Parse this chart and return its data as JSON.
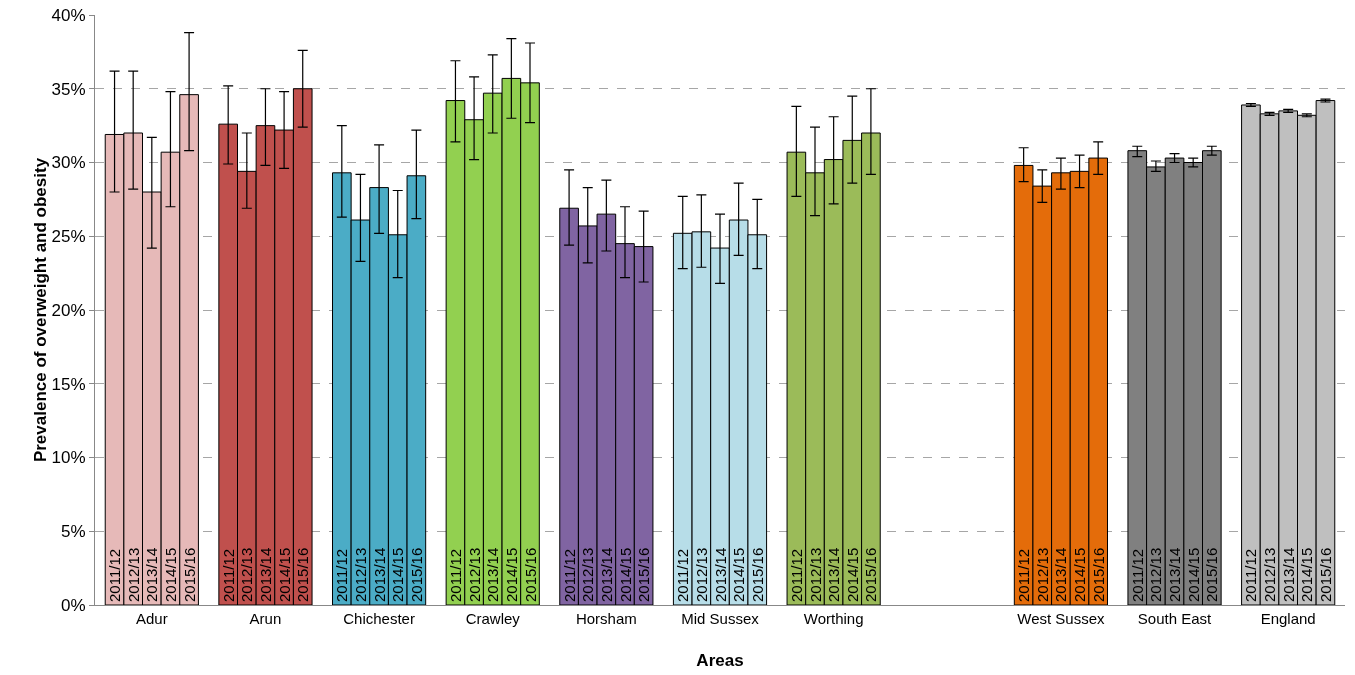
{
  "chart_data": {
    "type": "bar",
    "xlabel": "Areas",
    "ylabel": "Prevalence of overweight and obesity",
    "categories": [
      "Adur",
      "Arun",
      "Chichester",
      "Crawley",
      "Horsham",
      "Mid Sussex",
      "Worthing",
      null,
      "West Sussex",
      "South East",
      "England"
    ],
    "series": [
      {
        "name": "2011/12",
        "colors": [
          "#e6b9b8",
          "#c0504d",
          "#4bacc6",
          "#92d050",
          "#8064a2",
          "#b7dde8",
          "#9bbb59",
          null,
          "#e46c0a",
          "#808080",
          "#bfbfbf"
        ],
        "values": [
          31.9,
          32.6,
          29.3,
          34.2,
          26.9,
          25.2,
          30.7,
          null,
          29.8,
          30.8,
          33.9
        ],
        "errors": [
          [
            28.0,
            36.2
          ],
          [
            29.9,
            35.2
          ],
          [
            26.3,
            32.5
          ],
          [
            31.4,
            36.9
          ],
          [
            24.4,
            29.5
          ],
          [
            22.8,
            27.7
          ],
          [
            27.7,
            33.8
          ],
          null,
          [
            28.7,
            31.0
          ],
          [
            30.4,
            31.1
          ],
          [
            33.8,
            34.0
          ]
        ]
      },
      {
        "name": "2012/13",
        "colors": [
          "#e6b9b8",
          "#c0504d",
          "#4bacc6",
          "#92d050",
          "#8064a2",
          "#b7dde8",
          "#9bbb59",
          null,
          "#e46c0a",
          "#808080",
          "#bfbfbf"
        ],
        "values": [
          32.0,
          29.4,
          26.1,
          32.9,
          25.7,
          25.3,
          29.3,
          null,
          28.4,
          29.7,
          33.3
        ],
        "errors": [
          [
            28.2,
            36.2
          ],
          [
            26.9,
            32.0
          ],
          [
            23.3,
            29.2
          ],
          [
            30.2,
            35.8
          ],
          [
            23.2,
            28.3
          ],
          [
            22.9,
            27.8
          ],
          [
            26.4,
            32.4
          ],
          null,
          [
            27.3,
            29.5
          ],
          [
            29.4,
            30.1
          ],
          [
            33.2,
            33.4
          ]
        ]
      },
      {
        "name": "2013/14",
        "colors": [
          "#e6b9b8",
          "#c0504d",
          "#4bacc6",
          "#92d050",
          "#8064a2",
          "#b7dde8",
          "#9bbb59",
          null,
          "#e46c0a",
          "#808080",
          "#bfbfbf"
        ],
        "values": [
          28.0,
          32.5,
          28.3,
          34.7,
          26.5,
          24.2,
          30.2,
          null,
          29.3,
          30.3,
          33.5
        ],
        "errors": [
          [
            24.2,
            31.7
          ],
          [
            29.8,
            35.0
          ],
          [
            25.2,
            31.2
          ],
          [
            32.0,
            37.3
          ],
          [
            24.0,
            28.8
          ],
          [
            21.8,
            26.5
          ],
          [
            27.2,
            33.1
          ],
          null,
          [
            28.2,
            30.3
          ],
          [
            30.0,
            30.6
          ],
          [
            33.4,
            33.6
          ]
        ]
      },
      {
        "name": "2014/15",
        "colors": [
          "#e6b9b8",
          "#c0504d",
          "#4bacc6",
          "#92d050",
          "#8064a2",
          "#b7dde8",
          "#9bbb59",
          null,
          "#e46c0a",
          "#808080",
          "#bfbfbf"
        ],
        "values": [
          30.7,
          32.2,
          25.1,
          35.7,
          24.5,
          26.1,
          31.5,
          null,
          29.4,
          30.0,
          33.2
        ],
        "errors": [
          [
            27.0,
            34.8
          ],
          [
            29.6,
            34.8
          ],
          [
            22.2,
            28.1
          ],
          [
            33.0,
            38.4
          ],
          [
            22.2,
            27.0
          ],
          [
            23.7,
            28.6
          ],
          [
            28.6,
            34.5
          ],
          null,
          [
            28.3,
            30.5
          ],
          [
            29.7,
            30.3
          ],
          [
            33.1,
            33.3
          ]
        ]
      },
      {
        "name": "2015/16",
        "colors": [
          "#e6b9b8",
          "#c0504d",
          "#4bacc6",
          "#92d050",
          "#8064a2",
          "#b7dde8",
          "#9bbb59",
          null,
          "#e46c0a",
          "#808080",
          "#bfbfbf"
        ],
        "values": [
          34.6,
          35.0,
          29.1,
          35.4,
          24.3,
          25.1,
          32.0,
          null,
          30.3,
          30.8,
          34.2
        ],
        "errors": [
          [
            30.8,
            38.8
          ],
          [
            32.4,
            37.6
          ],
          [
            26.2,
            32.2
          ],
          [
            32.7,
            38.1
          ],
          [
            21.9,
            26.7
          ],
          [
            22.8,
            27.5
          ],
          [
            29.2,
            35.0
          ],
          null,
          [
            29.2,
            31.4
          ],
          [
            30.5,
            31.1
          ],
          [
            34.1,
            34.3
          ]
        ]
      }
    ],
    "ylim": [
      0,
      40
    ],
    "yticks": [
      {
        "value": 0,
        "label": "0%"
      },
      {
        "value": 5,
        "label": "5%"
      },
      {
        "value": 10,
        "label": "10%"
      },
      {
        "value": 15,
        "label": "15%"
      },
      {
        "value": 20,
        "label": "20%"
      },
      {
        "value": 25,
        "label": "25%"
      },
      {
        "value": 30,
        "label": "30%"
      },
      {
        "value": 35,
        "label": "35%"
      },
      {
        "value": 40,
        "label": "40%"
      }
    ],
    "grid": "y",
    "legend": false
  }
}
